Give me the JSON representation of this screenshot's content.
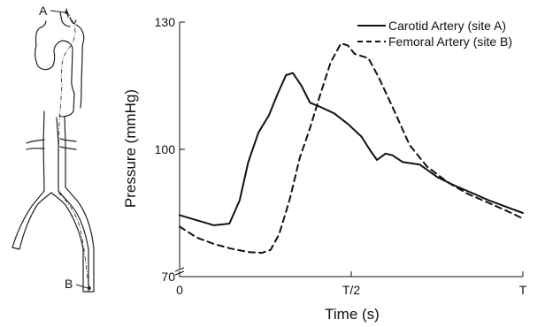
{
  "diagram": {
    "site_a_label": "A",
    "site_b_label": "B"
  },
  "chart_data": {
    "type": "line",
    "xlabel": "Time (s)",
    "ylabel": "Pressure (mmHg)",
    "xlim": [
      0,
      1
    ],
    "ylim": [
      70,
      130
    ],
    "x_ticks": [
      {
        "value": 0,
        "label": "0"
      },
      {
        "value": 0.5,
        "label": "T/2"
      },
      {
        "value": 1,
        "label": "T"
      }
    ],
    "y_ticks": [
      {
        "value": 70,
        "label": "70"
      },
      {
        "value": 100,
        "label": "100"
      },
      {
        "value": 130,
        "label": "130"
      }
    ],
    "grid": false,
    "legend_position": "top-right",
    "series": [
      {
        "name": "Carotid Artery (site A)",
        "line_style": "solid",
        "x": [
          0,
          0.05,
          0.1,
          0.145,
          0.175,
          0.2,
          0.23,
          0.26,
          0.285,
          0.31,
          0.33,
          0.355,
          0.38,
          0.41,
          0.45,
          0.49,
          0.53,
          0.555,
          0.575,
          0.6,
          0.62,
          0.65,
          0.7,
          0.75,
          0.8,
          0.85,
          0.9,
          0.95,
          1.0
        ],
        "values": [
          84.5,
          83.3,
          82.1,
          82.5,
          88,
          97,
          104,
          108,
          113,
          117.5,
          118,
          115,
          111,
          110,
          108.5,
          106,
          103,
          99.8,
          97.5,
          99,
          98.6,
          97,
          96.4,
          93.5,
          91.5,
          89.8,
          88,
          86.5,
          85
        ]
      },
      {
        "name": "Femoral Artery (site B)",
        "line_style": "dashed",
        "x": [
          0,
          0.05,
          0.1,
          0.15,
          0.2,
          0.24,
          0.265,
          0.29,
          0.32,
          0.35,
          0.38,
          0.41,
          0.44,
          0.47,
          0.49,
          0.51,
          0.53,
          0.55,
          0.58,
          0.62,
          0.67,
          0.72,
          0.78,
          0.84,
          0.9,
          0.95,
          1.0
        ],
        "values": [
          81.8,
          79.2,
          77.7,
          76.6,
          75.8,
          75.6,
          76.3,
          80,
          88,
          98,
          105,
          113,
          120.5,
          125,
          124.5,
          122.5,
          122,
          121.5,
          117,
          110,
          101,
          96,
          92.3,
          89.5,
          87.4,
          85.6,
          83.7
        ]
      }
    ]
  }
}
